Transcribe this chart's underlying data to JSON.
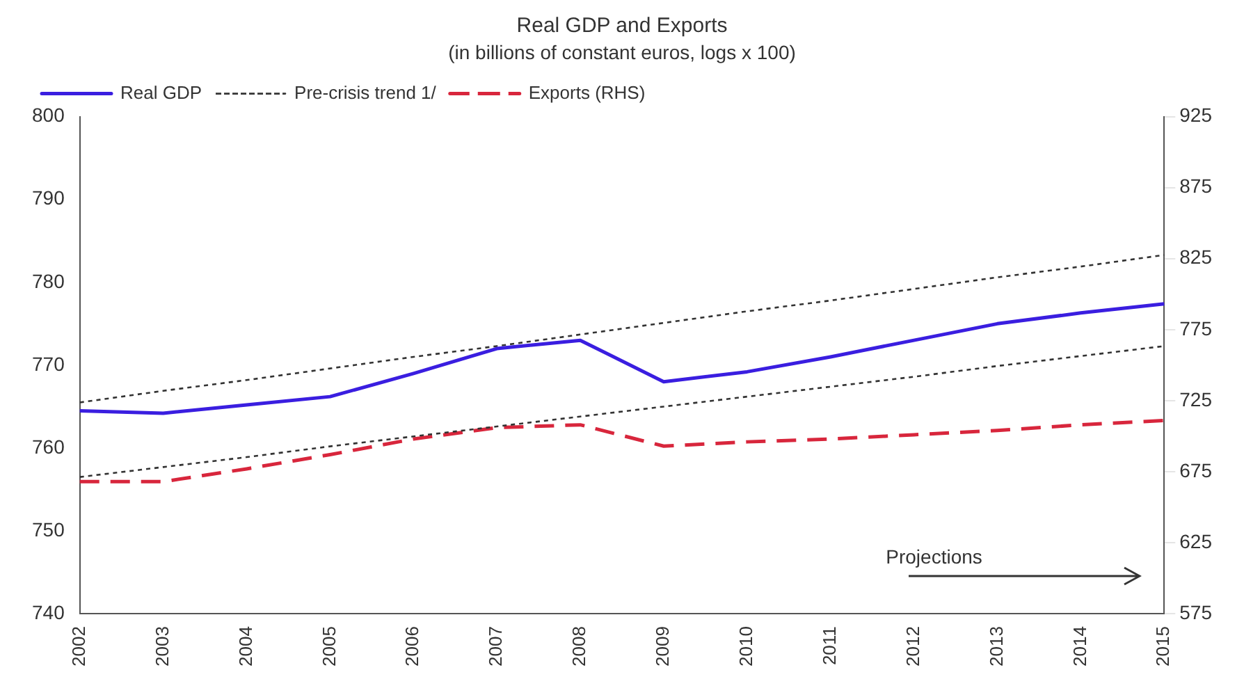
{
  "chart_data": {
    "type": "line",
    "title": "Real GDP and Exports",
    "subtitle": "(in billions of constant euros, logs x 100)",
    "categories": [
      "2002",
      "2003",
      "2004",
      "2005",
      "2006",
      "2007",
      "2008",
      "2009",
      "2010",
      "2011",
      "2012",
      "2013",
      "2014",
      "2015"
    ],
    "series": [
      {
        "name": "Real GDP",
        "color": "#3a1ee0",
        "line_style": "solid",
        "values": [
          764.5,
          764.2,
          765.2,
          766.2,
          769,
          772,
          773,
          768,
          769.2,
          771,
          773,
          775,
          776.3,
          777.4
        ]
      },
      {
        "name": "Pre-crisis trend 1/",
        "color": "#333333",
        "line_style": "dotted",
        "values": [
          765.5,
          766.9,
          768.2,
          769.6,
          771,
          772.3,
          773.7,
          775.1,
          776.5,
          777.8,
          779.2,
          780.6,
          781.9,
          783.3
        ]
      },
      {
        "color": "#333333",
        "line_style": "dotted",
        "values": [
          756.5,
          757.7,
          758.9,
          760.2,
          761.4,
          762.6,
          763.8,
          765,
          766.2,
          767.4,
          768.6,
          769.9,
          771.1,
          772.3
        ]
      },
      {
        "name": "Exports (RHS)",
        "color": "#d8263c",
        "line_style": "dashed",
        "axis": "y2",
        "values": [
          668,
          668,
          677,
          687,
          698,
          706,
          708,
          693,
          696,
          698,
          701,
          704,
          708,
          711
        ]
      }
    ],
    "ylim": [
      740,
      800
    ],
    "yticks": [
      740,
      750,
      760,
      770,
      780,
      790,
      800
    ],
    "y2lim": [
      575,
      925
    ],
    "y2ticks": [
      575,
      625,
      675,
      725,
      775,
      825,
      875,
      925
    ],
    "grid": false,
    "legend": "top left",
    "marker": "none",
    "annotations": [
      "Projections"
    ]
  }
}
